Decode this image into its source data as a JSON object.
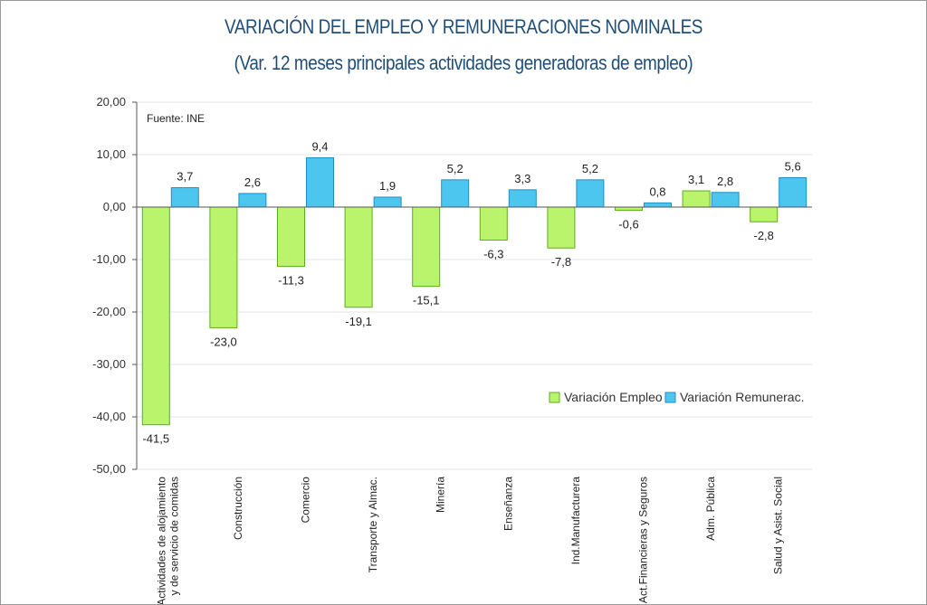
{
  "title": "VARIACIÓN DEL EMPLEO Y REMUNERACIONES NOMINALES",
  "subtitle": "(Var. 12 meses principales actividades generadoras de empleo)",
  "source_note": "Fuente: INE",
  "colors": {
    "empleo_fill": "#b9f46c",
    "empleo_stroke": "#5fae1c",
    "remun_fill": "#4cc6ef",
    "remun_stroke": "#1f8fc4",
    "title": "#1f4e79"
  },
  "chart_data": {
    "type": "bar",
    "title": "VARIACIÓN DEL EMPLEO Y REMUNERACIONES NOMINALES",
    "subtitle": "(Var. 12 meses principales actividades generadoras de empleo)",
    "categories": [
      [
        "Actividades de alojamiento",
        "y de servicio de comidas"
      ],
      [
        "Construcción"
      ],
      [
        "Comercio"
      ],
      [
        "Transporte y Almac."
      ],
      [
        "Minería"
      ],
      [
        "Enseñanza"
      ],
      [
        "Ind.Manufacturera"
      ],
      [
        "Act.Financieras y Seguros"
      ],
      [
        "Adm. Pública"
      ],
      [
        "Salud y Asist. Social"
      ]
    ],
    "series": [
      {
        "name": "Variación Empleo",
        "values": [
          -41.5,
          -23.0,
          -11.3,
          -19.1,
          -15.1,
          -6.3,
          -7.8,
          -0.6,
          3.1,
          -2.8
        ],
        "labels": [
          "-41,5",
          "-23,0",
          "-11,3",
          "-19,1",
          "-15,1",
          "-6,3",
          "-7,8",
          "-0,6",
          "3,1",
          "-2,8"
        ]
      },
      {
        "name": "Variación Remunerac.",
        "values": [
          3.7,
          2.6,
          9.4,
          1.9,
          5.2,
          3.3,
          5.2,
          0.8,
          2.8,
          5.6
        ],
        "labels": [
          "3,7",
          "2,6",
          "9,4",
          "1,9",
          "5,2",
          "3,3",
          "5,2",
          "0,8",
          "2,8",
          "5,6"
        ]
      }
    ],
    "ylim": [
      -50,
      20
    ],
    "yticks": [
      20,
      10,
      0,
      -10,
      -20,
      -30,
      -40,
      -50
    ],
    "ytick_labels": [
      "20,00",
      "10,00",
      "0,00",
      "-10,00",
      "-20,00",
      "-30,00",
      "-40,00",
      "-50,00"
    ],
    "grid": true,
    "legend_position": "lower-right"
  }
}
